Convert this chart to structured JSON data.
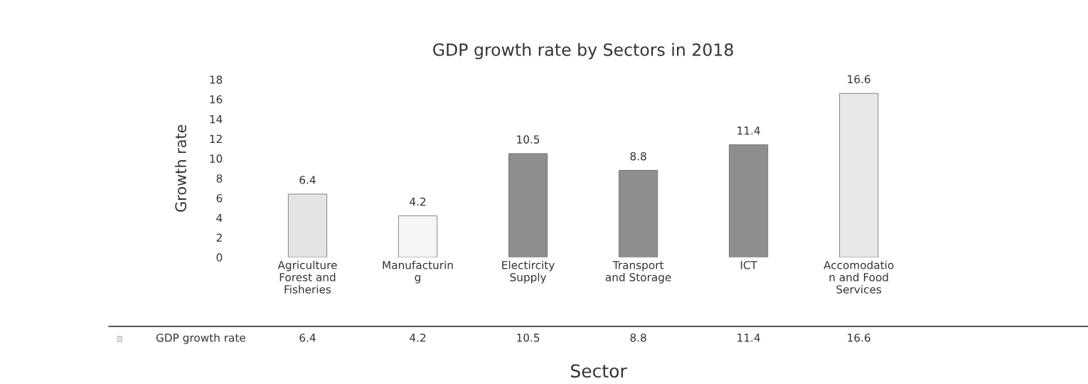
{
  "chart_data": {
    "type": "bar",
    "title": "GDP growth rate by Sectors in 2018",
    "xlabel": "Sector",
    "ylabel": "Growth rate",
    "categories": [
      "Agriculture\nForest and\nFisheries",
      "Manufacturin\ng",
      "Electircity\nSupply",
      "Transport\nand Storage",
      "ICT",
      "Accomodatio\nn and Food\nServices"
    ],
    "series": [
      {
        "name": "GDP growth rate",
        "values": [
          6.4,
          4.2,
          10.5,
          8.8,
          11.4,
          16.6
        ],
        "value_labels": [
          "6.4",
          "4.2",
          "10.5",
          "8.8",
          "11.4",
          "16.6"
        ]
      }
    ],
    "colors": [
      "#e4e4e4",
      "#f6f6f6",
      "#8e8e8e",
      "#8e8e8e",
      "#8e8e8e",
      "#e8e8e8"
    ],
    "ylim": [
      0,
      18
    ],
    "yticks": [
      0,
      2,
      4,
      6,
      8,
      10,
      12,
      14,
      16,
      18
    ],
    "grid": false,
    "annotations": [
      "6.4",
      "4.2",
      "10.5",
      "8.8",
      "11.4",
      "16.6"
    ]
  }
}
